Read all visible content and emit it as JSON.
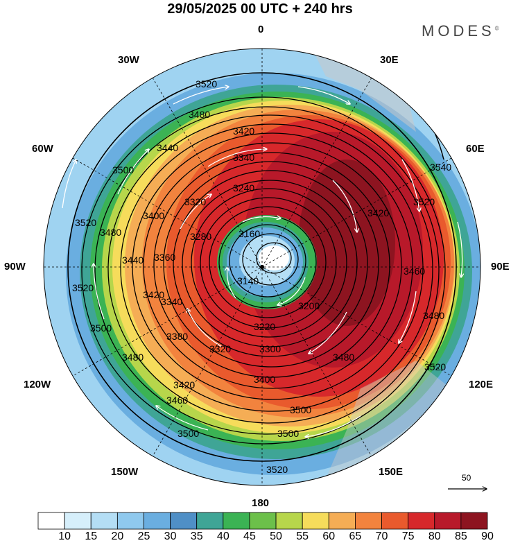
{
  "title": "29/05/2025  00 UTC  + 240 hrs",
  "brand": "MODES",
  "brand_mark": "©",
  "longitude_labels": {
    "top": "0",
    "bottom": "180",
    "left": "90W",
    "right": "90E",
    "nw1": "30W",
    "ne1": "30E",
    "nw2": "60W",
    "ne2": "60E",
    "sw1": "120W",
    "se1": "120E",
    "sw2": "150W",
    "se2": "150E"
  },
  "contour_labels": [
    "3520",
    "3480",
    "3420",
    "3440",
    "3340",
    "3240",
    "3160",
    "3140",
    "3200",
    "3220",
    "3300",
    "3320",
    "3400",
    "3460",
    "3500",
    "3360",
    "3280",
    "3380",
    "3540"
  ],
  "reference_vector_label": "50",
  "colorbar": {
    "tick_labels": [
      "10",
      "15",
      "20",
      "25",
      "30",
      "35",
      "40",
      "45",
      "50",
      "55",
      "60",
      "65",
      "70",
      "75",
      "80",
      "85",
      "90"
    ],
    "colors": [
      "#ffffff",
      "#d6effb",
      "#b4def5",
      "#8fc9ee",
      "#6aaee0",
      "#4f8fc6",
      "#3fa596",
      "#3bb354",
      "#6cc04a",
      "#b7d64b",
      "#f6dc5b",
      "#f5ad55",
      "#f2833e",
      "#e95a2d",
      "#d7282b",
      "#b8192a",
      "#8d1420"
    ]
  }
}
